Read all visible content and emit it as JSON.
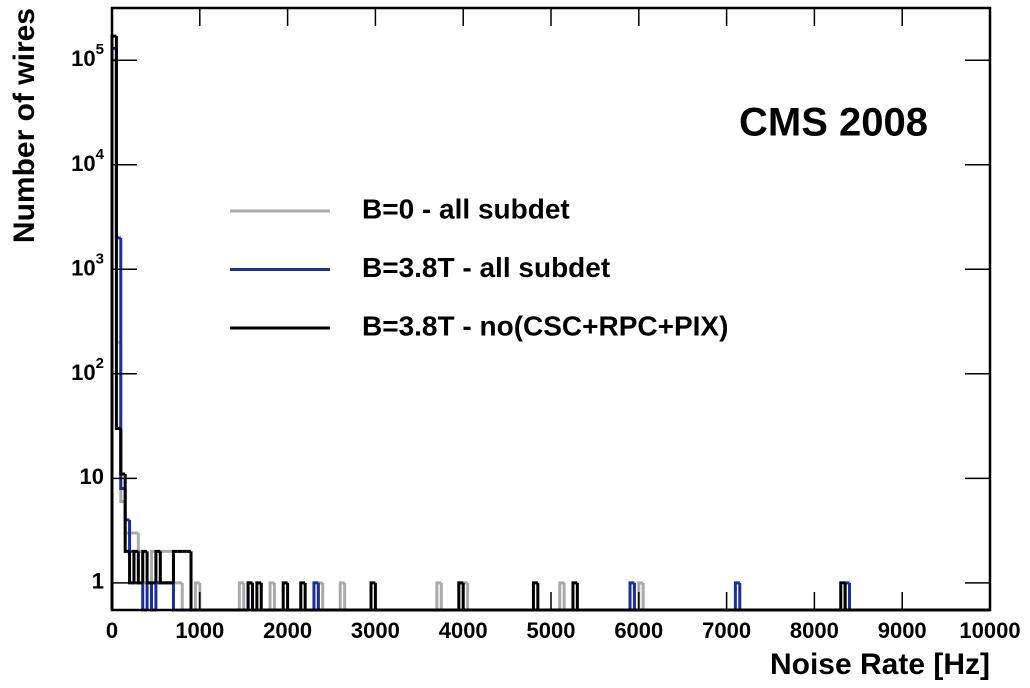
{
  "chart_data": {
    "type": "histogram",
    "annotation": "CMS 2008",
    "xlabel": "Noise Rate [Hz]",
    "ylabel": "Number of wires",
    "log_y": true,
    "xlim": [
      0,
      10000
    ],
    "xticks": [
      0,
      1000,
      2000,
      3000,
      4000,
      5000,
      6000,
      7000,
      8000,
      9000,
      10000
    ],
    "ylim": [
      0.55,
      316000
    ],
    "yticks": [
      1,
      10,
      {
        "value": 100,
        "label": "10^2"
      },
      {
        "value": 1000,
        "label": "10^3"
      },
      {
        "value": 10000,
        "label": "10^4"
      },
      {
        "value": 100000,
        "label": "10^5"
      }
    ],
    "series": [
      {
        "name": "B=0 - all subdet",
        "color": "#aaaaaa",
        "bins": [
          0,
          50,
          100,
          150,
          200,
          250,
          300,
          350,
          400,
          450,
          500,
          550,
          600,
          650,
          700,
          750,
          800,
          950,
          1000,
          1450,
          1500,
          1800,
          1850,
          2350,
          2400,
          2600,
          2650,
          3700,
          3750,
          4000,
          4050,
          5100,
          5150,
          6000,
          6050,
          10000
        ],
        "values": [
          100000,
          200,
          6,
          3,
          3,
          3,
          2,
          1,
          1,
          2,
          1,
          2,
          2,
          2,
          1,
          1,
          0,
          1,
          0,
          1,
          0,
          1,
          0,
          1,
          0,
          1,
          0,
          1,
          0,
          1,
          0,
          1,
          0,
          1,
          0
        ]
      },
      {
        "name": "B=3.8T - all subdet",
        "color": "#1a2ea0",
        "bins": [
          0,
          50,
          100,
          150,
          200,
          250,
          300,
          350,
          400,
          450,
          500,
          700,
          1550,
          1600,
          2300,
          2350,
          5900,
          5950,
          7100,
          7150,
          8350,
          8400,
          10000
        ],
        "values": [
          130000,
          2000,
          8,
          4,
          2,
          1,
          1,
          0,
          1,
          0,
          1,
          0,
          1,
          0,
          1,
          0,
          1,
          0,
          1,
          0,
          1,
          0
        ]
      },
      {
        "name": "B=3.8T - no(CSC+RPC+PIX)",
        "color": "#000000",
        "bins": [
          0,
          50,
          100,
          150,
          200,
          250,
          300,
          350,
          400,
          450,
          500,
          550,
          600,
          650,
          700,
          750,
          800,
          850,
          900,
          1550,
          1600,
          1650,
          1700,
          1950,
          2000,
          2150,
          2200,
          2950,
          3000,
          3950,
          4000,
          4800,
          4850,
          5250,
          5300,
          8300,
          8350,
          10000
        ],
        "values": [
          170000,
          30,
          11,
          2,
          1,
          2,
          1,
          2,
          1,
          1,
          2,
          1,
          1,
          1,
          2,
          2,
          2,
          2,
          0,
          1,
          0,
          1,
          0,
          1,
          0,
          1,
          0,
          1,
          0,
          1,
          0,
          1,
          0,
          1,
          0,
          1,
          0
        ]
      }
    ]
  }
}
